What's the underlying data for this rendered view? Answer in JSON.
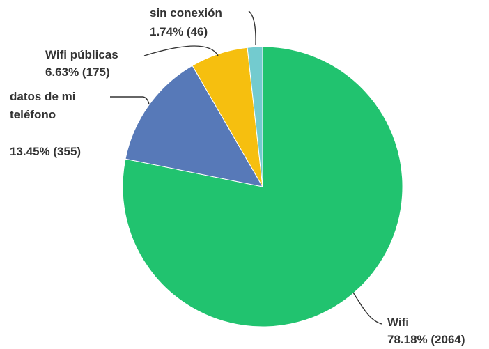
{
  "chart_data": {
    "type": "pie",
    "title": "",
    "slices": [
      {
        "name": "Wifi",
        "label_line1": "Wifi",
        "label_line2": "",
        "value_text": "78.18% (2064)",
        "percent": 78.18,
        "count": 2064,
        "color": "#21c36f"
      },
      {
        "name": "datos de mi teléfono",
        "label_line1": "datos de mi",
        "label_line2": "teléfono",
        "value_text": "13.45% (355)",
        "percent": 13.45,
        "count": 355,
        "color": "#5779b8"
      },
      {
        "name": "Wifi públicas",
        "label_line1": "Wifi públicas",
        "label_line2": "",
        "value_text": "6.63% (175)",
        "percent": 6.63,
        "count": 175,
        "color": "#f6bf0f"
      },
      {
        "name": "sin conexión",
        "label_line1": "sin conexión",
        "label_line2": "",
        "value_text": "1.74% (46)",
        "percent": 1.74,
        "count": 46,
        "color": "#73cbcf"
      }
    ],
    "start_angle": "12 o'clock",
    "direction": "clockwise",
    "legend": "none"
  }
}
